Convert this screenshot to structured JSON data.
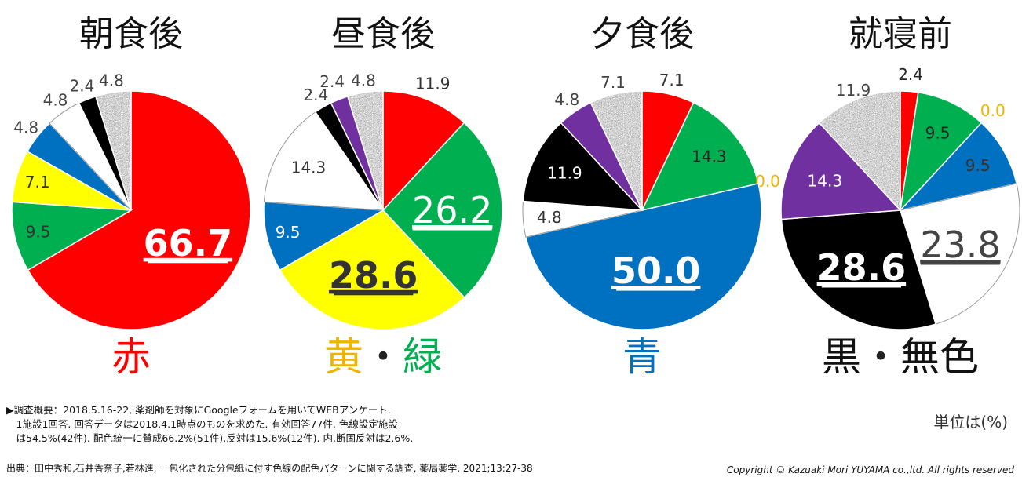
{
  "chart_data": [
    {
      "type": "pie",
      "title": "朝食後",
      "slices": [
        {
          "value": 66.7,
          "label": "66.7",
          "color": "#ff0000",
          "pattern": false
        },
        {
          "value": 9.5,
          "label": "9.5",
          "color": "#00b050",
          "pattern": false
        },
        {
          "value": 7.1,
          "label": "7.1",
          "color": "#ffff00",
          "pattern": false
        },
        {
          "value": 4.8,
          "label": "4.8",
          "color": "#0070c0",
          "pattern": false
        },
        {
          "value": 4.8,
          "label": "4.8",
          "color": "#ffffff",
          "pattern": false
        },
        {
          "value": 2.4,
          "label": "2.4",
          "color": "#000000",
          "pattern": false
        },
        {
          "value": 4.8,
          "label": "4.8",
          "color": "#aaaaaa",
          "pattern": true
        }
      ],
      "color_names": [
        {
          "text": "赤",
          "color": "#ff0000"
        }
      ]
    },
    {
      "type": "pie",
      "title": "昼食後",
      "slices": [
        {
          "value": 11.9,
          "label": "11.9",
          "color": "#ff0000",
          "pattern": false
        },
        {
          "value": 26.2,
          "label": "26.2",
          "color": "#00b050",
          "pattern": false
        },
        {
          "value": 28.6,
          "label": "28.6",
          "color": "#ffff00",
          "pattern": false
        },
        {
          "value": 9.5,
          "label": "9.5",
          "color": "#0070c0",
          "pattern": false
        },
        {
          "value": 14.3,
          "label": "14.3",
          "color": "#ffffff",
          "pattern": false
        },
        {
          "value": 2.4,
          "label": "2.4",
          "color": "#000000",
          "pattern": false
        },
        {
          "value": 2.4,
          "label": "2.4",
          "color": "#7030a0",
          "pattern": false
        },
        {
          "value": 4.8,
          "label": "4.8",
          "color": "#aaaaaa",
          "pattern": true
        }
      ],
      "color_names": [
        {
          "text": "黄",
          "color": "#f0b400"
        },
        {
          "text": "・",
          "color": "#222222"
        },
        {
          "text": "緑",
          "color": "#00b050"
        }
      ]
    },
    {
      "type": "pie",
      "title": "夕食後",
      "slices": [
        {
          "value": 7.1,
          "label": "7.1",
          "color": "#ff0000",
          "pattern": false
        },
        {
          "value": 14.3,
          "label": "14.3",
          "color": "#00b050",
          "pattern": false
        },
        {
          "value": 0.0,
          "label": "0.0",
          "color": "#ffff00",
          "pattern": false
        },
        {
          "value": 50.0,
          "label": "50.0",
          "color": "#0070c0",
          "pattern": false
        },
        {
          "value": 4.8,
          "label": "4.8",
          "color": "#ffffff",
          "pattern": false
        },
        {
          "value": 11.9,
          "label": "11.9",
          "color": "#000000",
          "pattern": false
        },
        {
          "value": 4.8,
          "label": "4.8",
          "color": "#7030a0",
          "pattern": false
        },
        {
          "value": 7.1,
          "label": "7.1",
          "color": "#aaaaaa",
          "pattern": true
        }
      ],
      "color_names": [
        {
          "text": "青",
          "color": "#0070c0"
        }
      ]
    },
    {
      "type": "pie",
      "title": "就寝前",
      "slices": [
        {
          "value": 2.4,
          "label": "2.4",
          "color": "#ff0000",
          "pattern": false
        },
        {
          "value": 9.5,
          "label": "9.5",
          "color": "#00b050",
          "pattern": false
        },
        {
          "value": 0.0,
          "label": "0.0",
          "color": "#ffff00",
          "pattern": false
        },
        {
          "value": 9.5,
          "label": "9.5",
          "color": "#0070c0",
          "pattern": false
        },
        {
          "value": 23.8,
          "label": "23.8",
          "color": "#ffffff",
          "pattern": false
        },
        {
          "value": 28.6,
          "label": "28.6",
          "color": "#000000",
          "pattern": false
        },
        {
          "value": 14.3,
          "label": "14.3",
          "color": "#7030a0",
          "pattern": false
        },
        {
          "value": 11.9,
          "label": "11.9",
          "color": "#aaaaaa",
          "pattern": true
        }
      ],
      "color_names": [
        {
          "text": "黒",
          "color": "#111111"
        },
        {
          "text": "・",
          "color": "#222222"
        },
        {
          "text": "無色",
          "color": "#111111"
        }
      ]
    }
  ],
  "footer": {
    "survey_lines": [
      "▶調査概要：2018.5.16-22, 薬剤師を対象にGoogleフォームを用いてWEBアンケート.",
      "　1施設1回答. 回答データは2018.4.1時点のものを求めた. 有効回答77件. 色線設定施設",
      "　は54.5%(42件). 配色統一に賛成66.2%(51件),反対は15.6%(12件). 内,断固反対は2.6%."
    ],
    "unit_note": "単位は(%)",
    "source": "出典：田中秀和,石井香奈子,若林進, 一包化された分包紙に付す色線の配色パターンに関する調査, 薬局薬学, 2021;13:27-38",
    "copyright": "Copyright  ©  Kazuaki Mori  YUYAMA co.,ltd. All rights reserved"
  }
}
